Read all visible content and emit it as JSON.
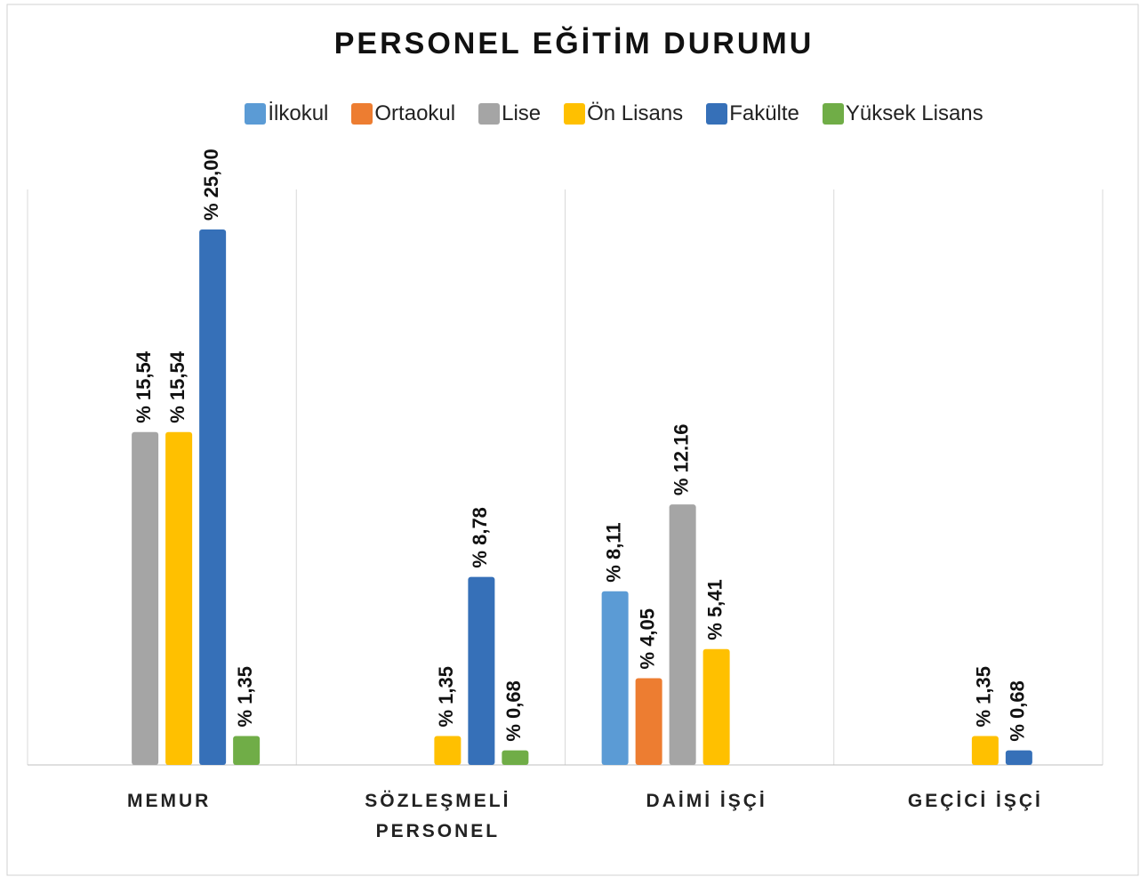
{
  "chart_data": {
    "type": "bar",
    "title": "PERSONEL EĞİTİM DURUMU",
    "categories": [
      "MEMUR",
      "SÖZLEŞMELİ PERSONEL",
      "DAİMİ İŞÇİ",
      "GEÇİCİ İŞÇİ"
    ],
    "series": [
      {
        "name": "İlkokul",
        "color": "#5b9bd5",
        "values": [
          null,
          null,
          8.11,
          null
        ],
        "value_labels": [
          null,
          null,
          "% 8,11",
          null
        ]
      },
      {
        "name": "Ortaokul",
        "color": "#ed7d31",
        "values": [
          null,
          null,
          4.05,
          null
        ],
        "value_labels": [
          null,
          null,
          "% 4,05",
          null
        ]
      },
      {
        "name": "Lise",
        "color": "#a5a5a5",
        "values": [
          15.54,
          null,
          12.16,
          null
        ],
        "value_labels": [
          "% 15,54",
          null,
          "% 12.16",
          null
        ]
      },
      {
        "name": "Ön Lisans",
        "color": "#ffc000",
        "values": [
          15.54,
          1.35,
          5.41,
          1.35
        ],
        "value_labels": [
          "% 15,54",
          "% 1,35",
          "% 5,41",
          "% 1,35"
        ]
      },
      {
        "name": "Fakülte",
        "color": "#3670b8",
        "values": [
          25.0,
          8.78,
          null,
          0.68
        ],
        "value_labels": [
          "% 25,00",
          "% 8,78",
          null,
          "% 0,68"
        ]
      },
      {
        "name": "Yüksek Lisans",
        "color": "#70ad47",
        "values": [
          1.35,
          0.68,
          null,
          null
        ],
        "value_labels": [
          "% 1,35",
          "% 0,68",
          null,
          null
        ]
      }
    ],
    "ylim": [
      0,
      25
    ],
    "grid": true,
    "legend": "top"
  }
}
